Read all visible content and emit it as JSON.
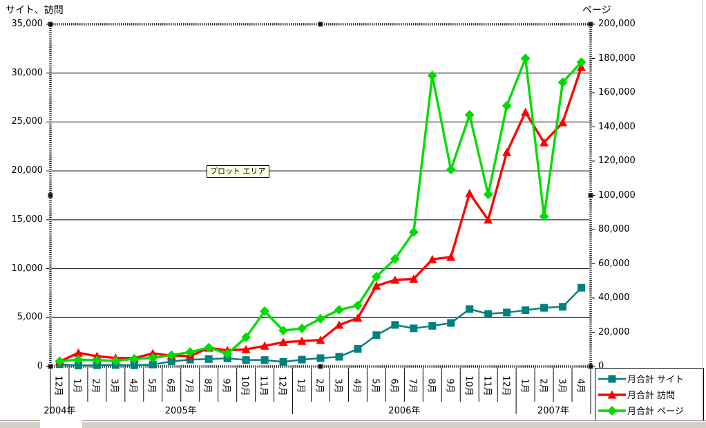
{
  "chart_data": {
    "type": "line",
    "left_axis": {
      "title": "サイト、訪問",
      "min": 0,
      "max": 35000,
      "step": 5000,
      "tick_labels": [
        "0",
        "5,000",
        "10,000",
        "15,000",
        "20,000",
        "25,000",
        "30,000",
        "35,000"
      ]
    },
    "right_axis": {
      "title": "ページ",
      "min": 0,
      "max": 200000,
      "step": 20000,
      "tick_labels": [
        "0",
        "20,000",
        "40,000",
        "60,000",
        "80,000",
        "100,000",
        "120,000",
        "140,000",
        "160,000",
        "180,000",
        "200,000"
      ]
    },
    "categories": [
      "12月",
      "1月",
      "2月",
      "3月",
      "4月",
      "5月",
      "6月",
      "7月",
      "8月",
      "9月",
      "10月",
      "11月",
      "12月",
      "1月",
      "2月",
      "3月",
      "4月",
      "5月",
      "6月",
      "7月",
      "8月",
      "9月",
      "10月",
      "11月",
      "12月",
      "1月",
      "2月",
      "3月",
      "4月"
    ],
    "year_groups": [
      {
        "label": "2004年",
        "start": 0,
        "count": 1
      },
      {
        "label": "2005年",
        "start": 1,
        "count": 12
      },
      {
        "label": "2006年",
        "start": 13,
        "count": 12
      },
      {
        "label": "2007年",
        "start": 25,
        "count": 4
      }
    ],
    "series": [
      {
        "name": "月合計 サイト",
        "axis": "left",
        "marker": "square",
        "color": "#008080",
        "values": [
          230,
          100,
          130,
          150,
          120,
          200,
          520,
          700,
          760,
          830,
          660,
          660,
          470,
          700,
          850,
          990,
          1800,
          3200,
          4250,
          3900,
          4150,
          4450,
          5870,
          5370,
          5520,
          5750,
          6000,
          6100,
          8050
        ]
      },
      {
        "name": "月合計 訪問",
        "axis": "left",
        "marker": "triangle",
        "color": "#ff0000",
        "values": [
          500,
          1400,
          1050,
          870,
          850,
          1340,
          1100,
          1060,
          1900,
          1650,
          1750,
          2100,
          2480,
          2600,
          2700,
          4240,
          4950,
          8250,
          8850,
          8950,
          10950,
          11200,
          17700,
          15000,
          21900,
          26000,
          22900,
          24950,
          30600
        ]
      },
      {
        "name": "月合計 ページ",
        "axis": "right",
        "marker": "diamond",
        "color": "#00dc00",
        "values": [
          3100,
          4000,
          3600,
          3400,
          4400,
          5000,
          6600,
          8400,
          11000,
          7400,
          17000,
          32300,
          21000,
          22200,
          27900,
          33100,
          35600,
          52500,
          62900,
          78500,
          170000,
          115000,
          147000,
          100500,
          152300,
          180000,
          87700,
          166000,
          177800
        ]
      }
    ],
    "grid": "horizontal",
    "legend_position": "bottom-right",
    "plot_area_tooltip": "プロット エリア"
  }
}
